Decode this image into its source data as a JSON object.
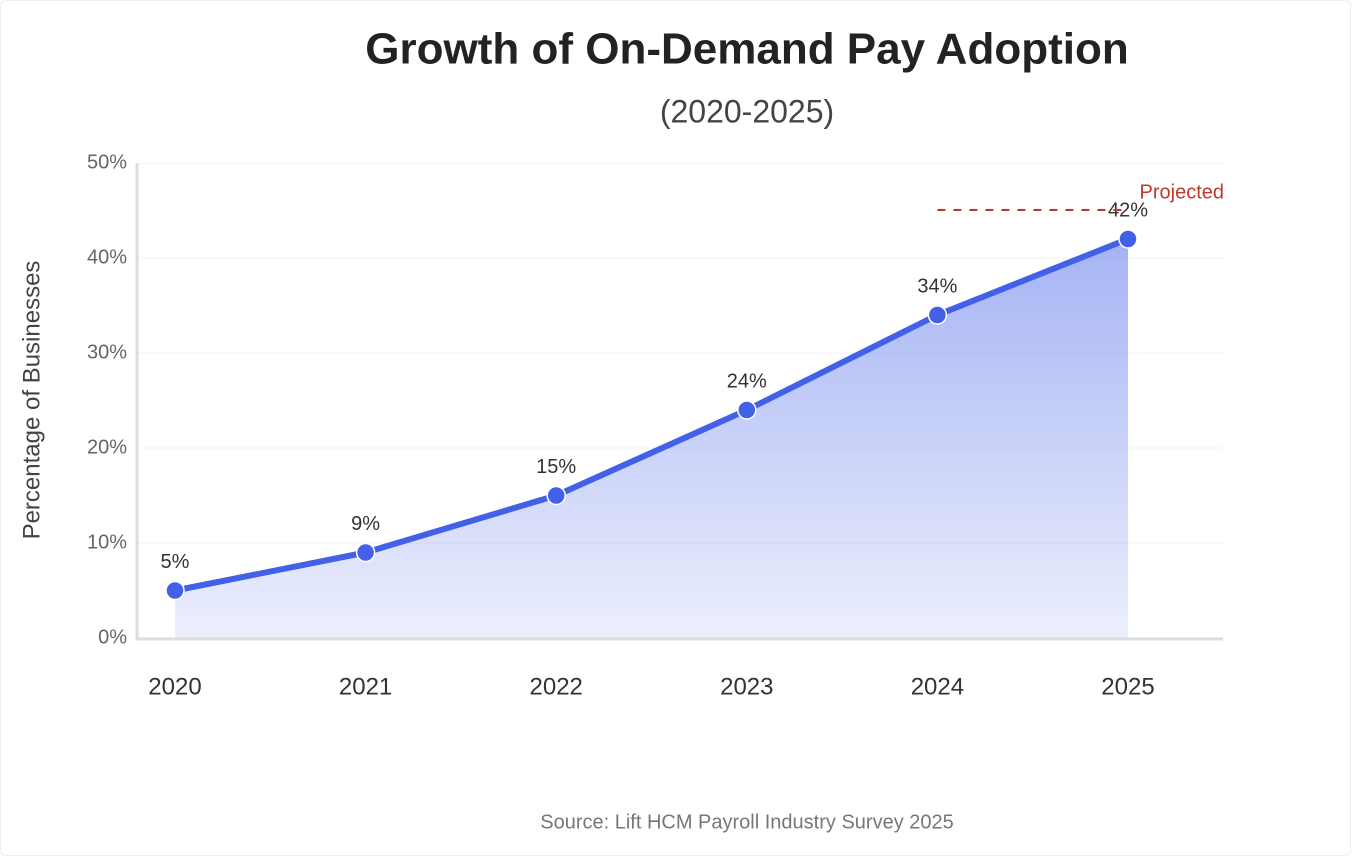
{
  "chart_data": {
    "type": "line",
    "title": "Growth of On-Demand Pay Adoption",
    "subtitle": "(2020-2025)",
    "y_label": "Percentage of Businesses",
    "categories": [
      "2020",
      "2021",
      "2022",
      "2023",
      "2024",
      "2025"
    ],
    "values": [
      5,
      9,
      15,
      24,
      34,
      42
    ],
    "value_labels": [
      "5%",
      "9%",
      "15%",
      "24%",
      "34%",
      "42%"
    ],
    "color": "#4361e8",
    "area": true,
    "ylim": [
      0,
      50
    ],
    "yticks": [
      {
        "value": 0,
        "label": "0%"
      },
      {
        "value": 10,
        "label": "10%"
      },
      {
        "value": 20,
        "label": "20%"
      },
      {
        "value": 30,
        "label": "30%"
      },
      {
        "value": 40,
        "label": "40%"
      },
      {
        "value": 50,
        "label": "50%"
      }
    ],
    "grid": true,
    "annotation": "Projected",
    "annotation_color": "#c0392b",
    "source": "Source: Lift HCM Payroll Industry Survey 2025"
  }
}
